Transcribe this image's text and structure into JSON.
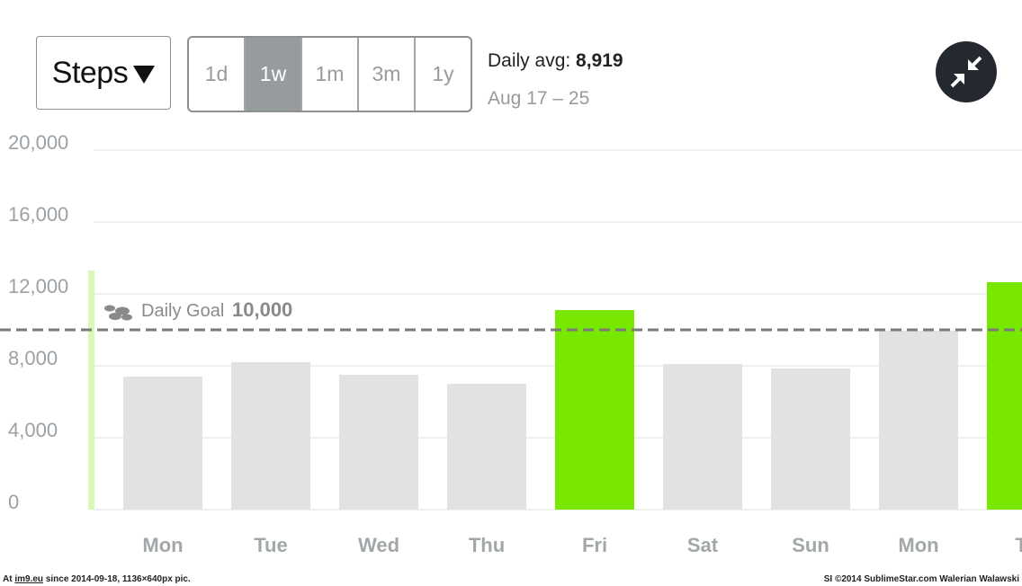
{
  "metric": {
    "label": "Steps"
  },
  "ranges": [
    {
      "label": "1d",
      "active": false
    },
    {
      "label": "1w",
      "active": true
    },
    {
      "label": "1m",
      "active": false
    },
    {
      "label": "3m",
      "active": false
    },
    {
      "label": "1y",
      "active": false
    }
  ],
  "summary": {
    "avg_label": "Daily avg:",
    "avg_value": "8,919",
    "date_range": "Aug 17 – 25"
  },
  "icons": {
    "collapse": "collapse-arrows-icon",
    "goal": "footprints-icon"
  },
  "colors": {
    "goal_met": "#79e800",
    "goal_missed": "#e2e2e2",
    "goal_line": "#7a7a7a"
  },
  "chart_data": {
    "type": "bar",
    "categories": [
      "Mon",
      "Tue",
      "Wed",
      "Thu",
      "Fri",
      "Sat",
      "Sun",
      "Mon",
      "Tu"
    ],
    "values": [
      7400,
      8200,
      7500,
      7000,
      11100,
      8100,
      7850,
      9950,
      12650
    ],
    "ylim": [
      0,
      20000
    ],
    "yticks": [
      "0",
      "4,000",
      "8,000",
      "12,000",
      "16,000",
      "20,000"
    ],
    "ytick_values": [
      0,
      4000,
      8000,
      12000,
      16000,
      20000
    ],
    "grid": true,
    "goal": {
      "label": "Daily Goal",
      "value": 10000,
      "value_label": "10,000"
    }
  },
  "footer": {
    "left_prefix": "At",
    "left_link": "im9.eu",
    "left_suffix": "since 2014-09-18, 1136×640px pic.",
    "right": "SI ©2014 SublimeStar.com Walerian Walawski"
  }
}
